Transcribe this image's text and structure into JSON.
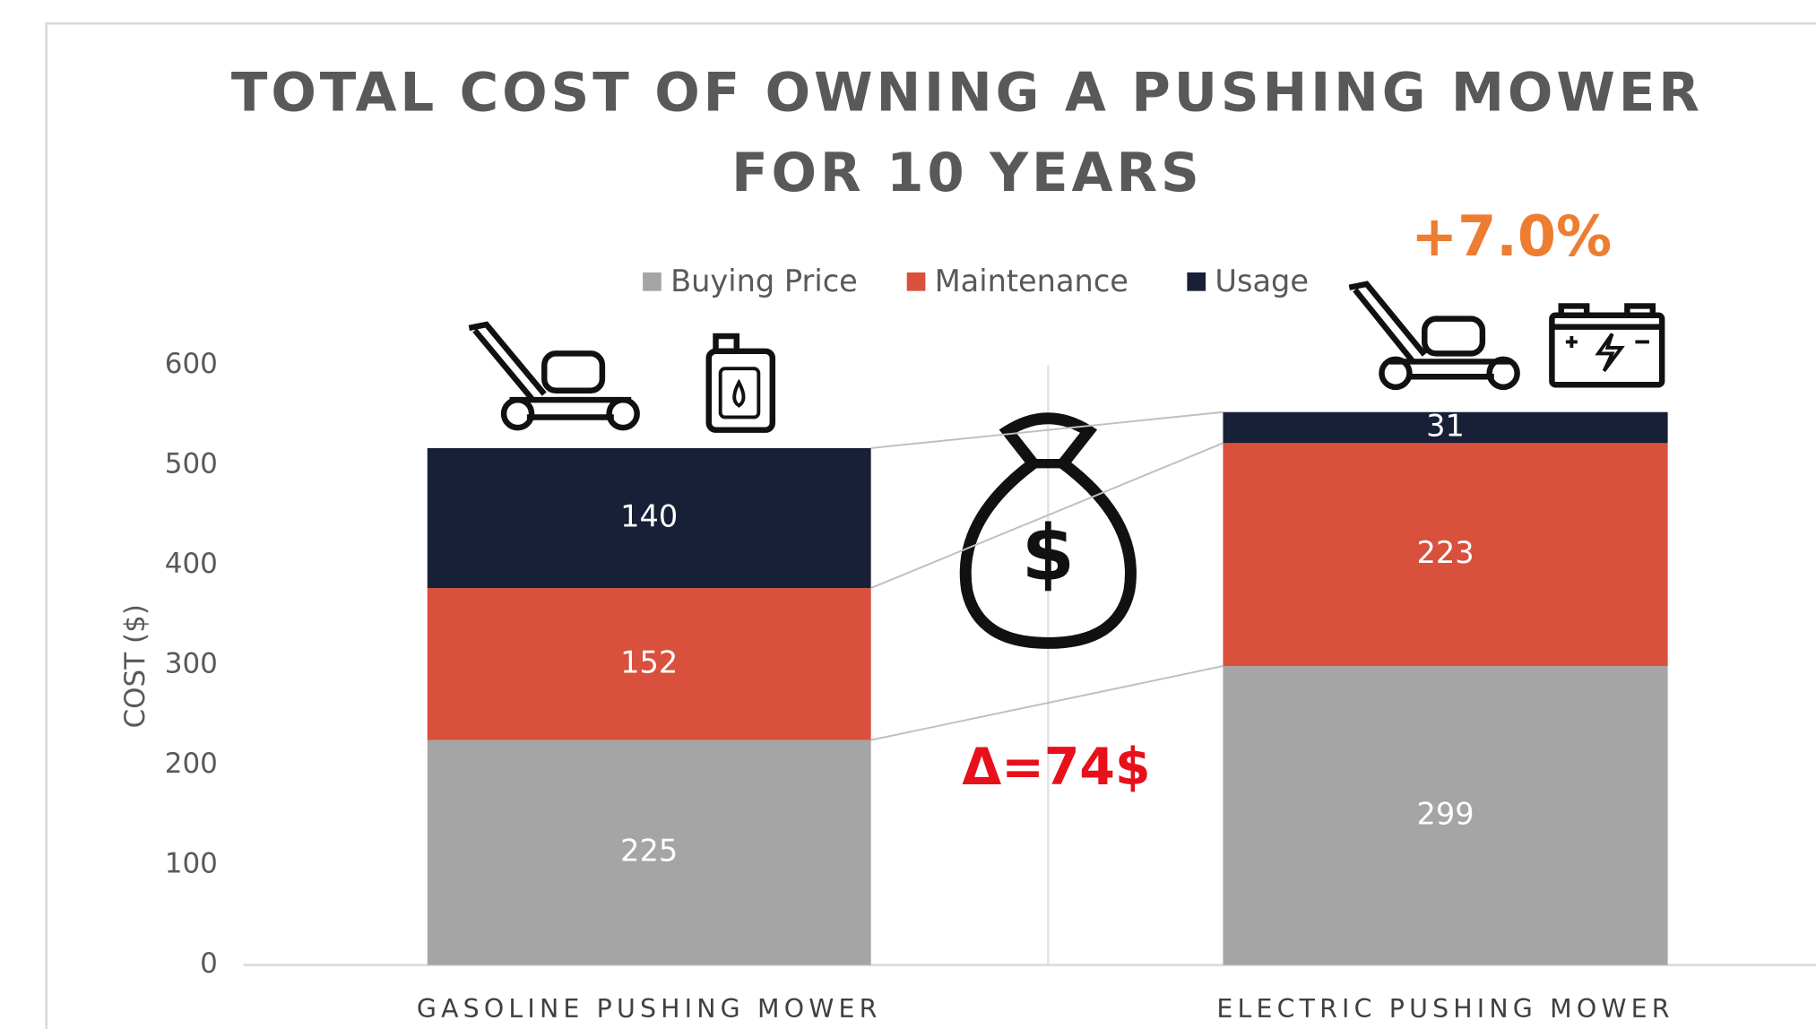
{
  "chart_data": {
    "type": "stacked_bar",
    "title": [
      "TOTAL COST OF OWNING A PUSHING MOWER",
      "FOR 10 YEARS"
    ],
    "ylabel": "COST ($)",
    "categories": [
      "GASOLINE PUSHING MOWER",
      "ELECTRIC PUSHING MOWER"
    ],
    "series": [
      {
        "name": "Buying Price",
        "color": "#a5a5a5",
        "values": [
          225,
          299
        ]
      },
      {
        "name": "Maintenance",
        "color": "#d9503c",
        "values": [
          152,
          223
        ]
      },
      {
        "name": "Usage",
        "color": "#172036",
        "values": [
          140,
          31
        ]
      }
    ],
    "ylim": [
      0,
      600
    ],
    "yticks": [
      0,
      100,
      200,
      300,
      400,
      500,
      600
    ],
    "legend": "top",
    "annotations": [
      {
        "text": "+7.0%",
        "color": "#ed7d31"
      },
      {
        "text": "Δ=74$",
        "color": "#e8101a"
      }
    ],
    "icon_text": "$"
  }
}
